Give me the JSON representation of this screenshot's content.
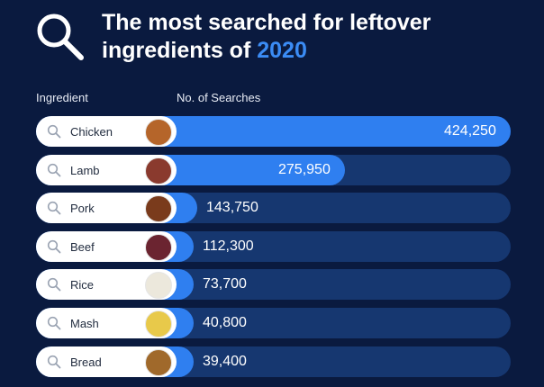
{
  "title": {
    "line1": "The most searched for leftover",
    "line2_prefix": "ingredients of ",
    "line2_year": "2020"
  },
  "headers": {
    "ingredient": "Ingredient",
    "searches": "No. of Searches"
  },
  "colors": {
    "background": "#0a1a3f",
    "track": "#163770",
    "bar": "#2f7ff0",
    "accent": "#3b8cf5",
    "pill": "#ffffff"
  },
  "icons": {
    "logo": "search-icon",
    "row": "search-icon"
  },
  "chart_data": {
    "type": "bar",
    "orientation": "horizontal",
    "title": "The most searched for leftover ingredients of 2020",
    "xlabel": "No. of Searches",
    "ylabel": "Ingredient",
    "categories": [
      "Chicken",
      "Lamb",
      "Pork",
      "Beef",
      "Rice",
      "Mash",
      "Bread"
    ],
    "values": [
      424250,
      275950,
      143750,
      112300,
      73700,
      40800,
      39400
    ],
    "value_labels": [
      "424,250",
      "275,950",
      "143,750",
      "112,300",
      "73,700",
      "40,800",
      "39,400"
    ],
    "thumb_colors": [
      "#b5652a",
      "#8a3a2e",
      "#7a3b1c",
      "#6b2430",
      "#ece8dc",
      "#e8c94a",
      "#a0692b"
    ],
    "xlim": [
      0,
      424250
    ],
    "grid": false,
    "legend": "none"
  }
}
